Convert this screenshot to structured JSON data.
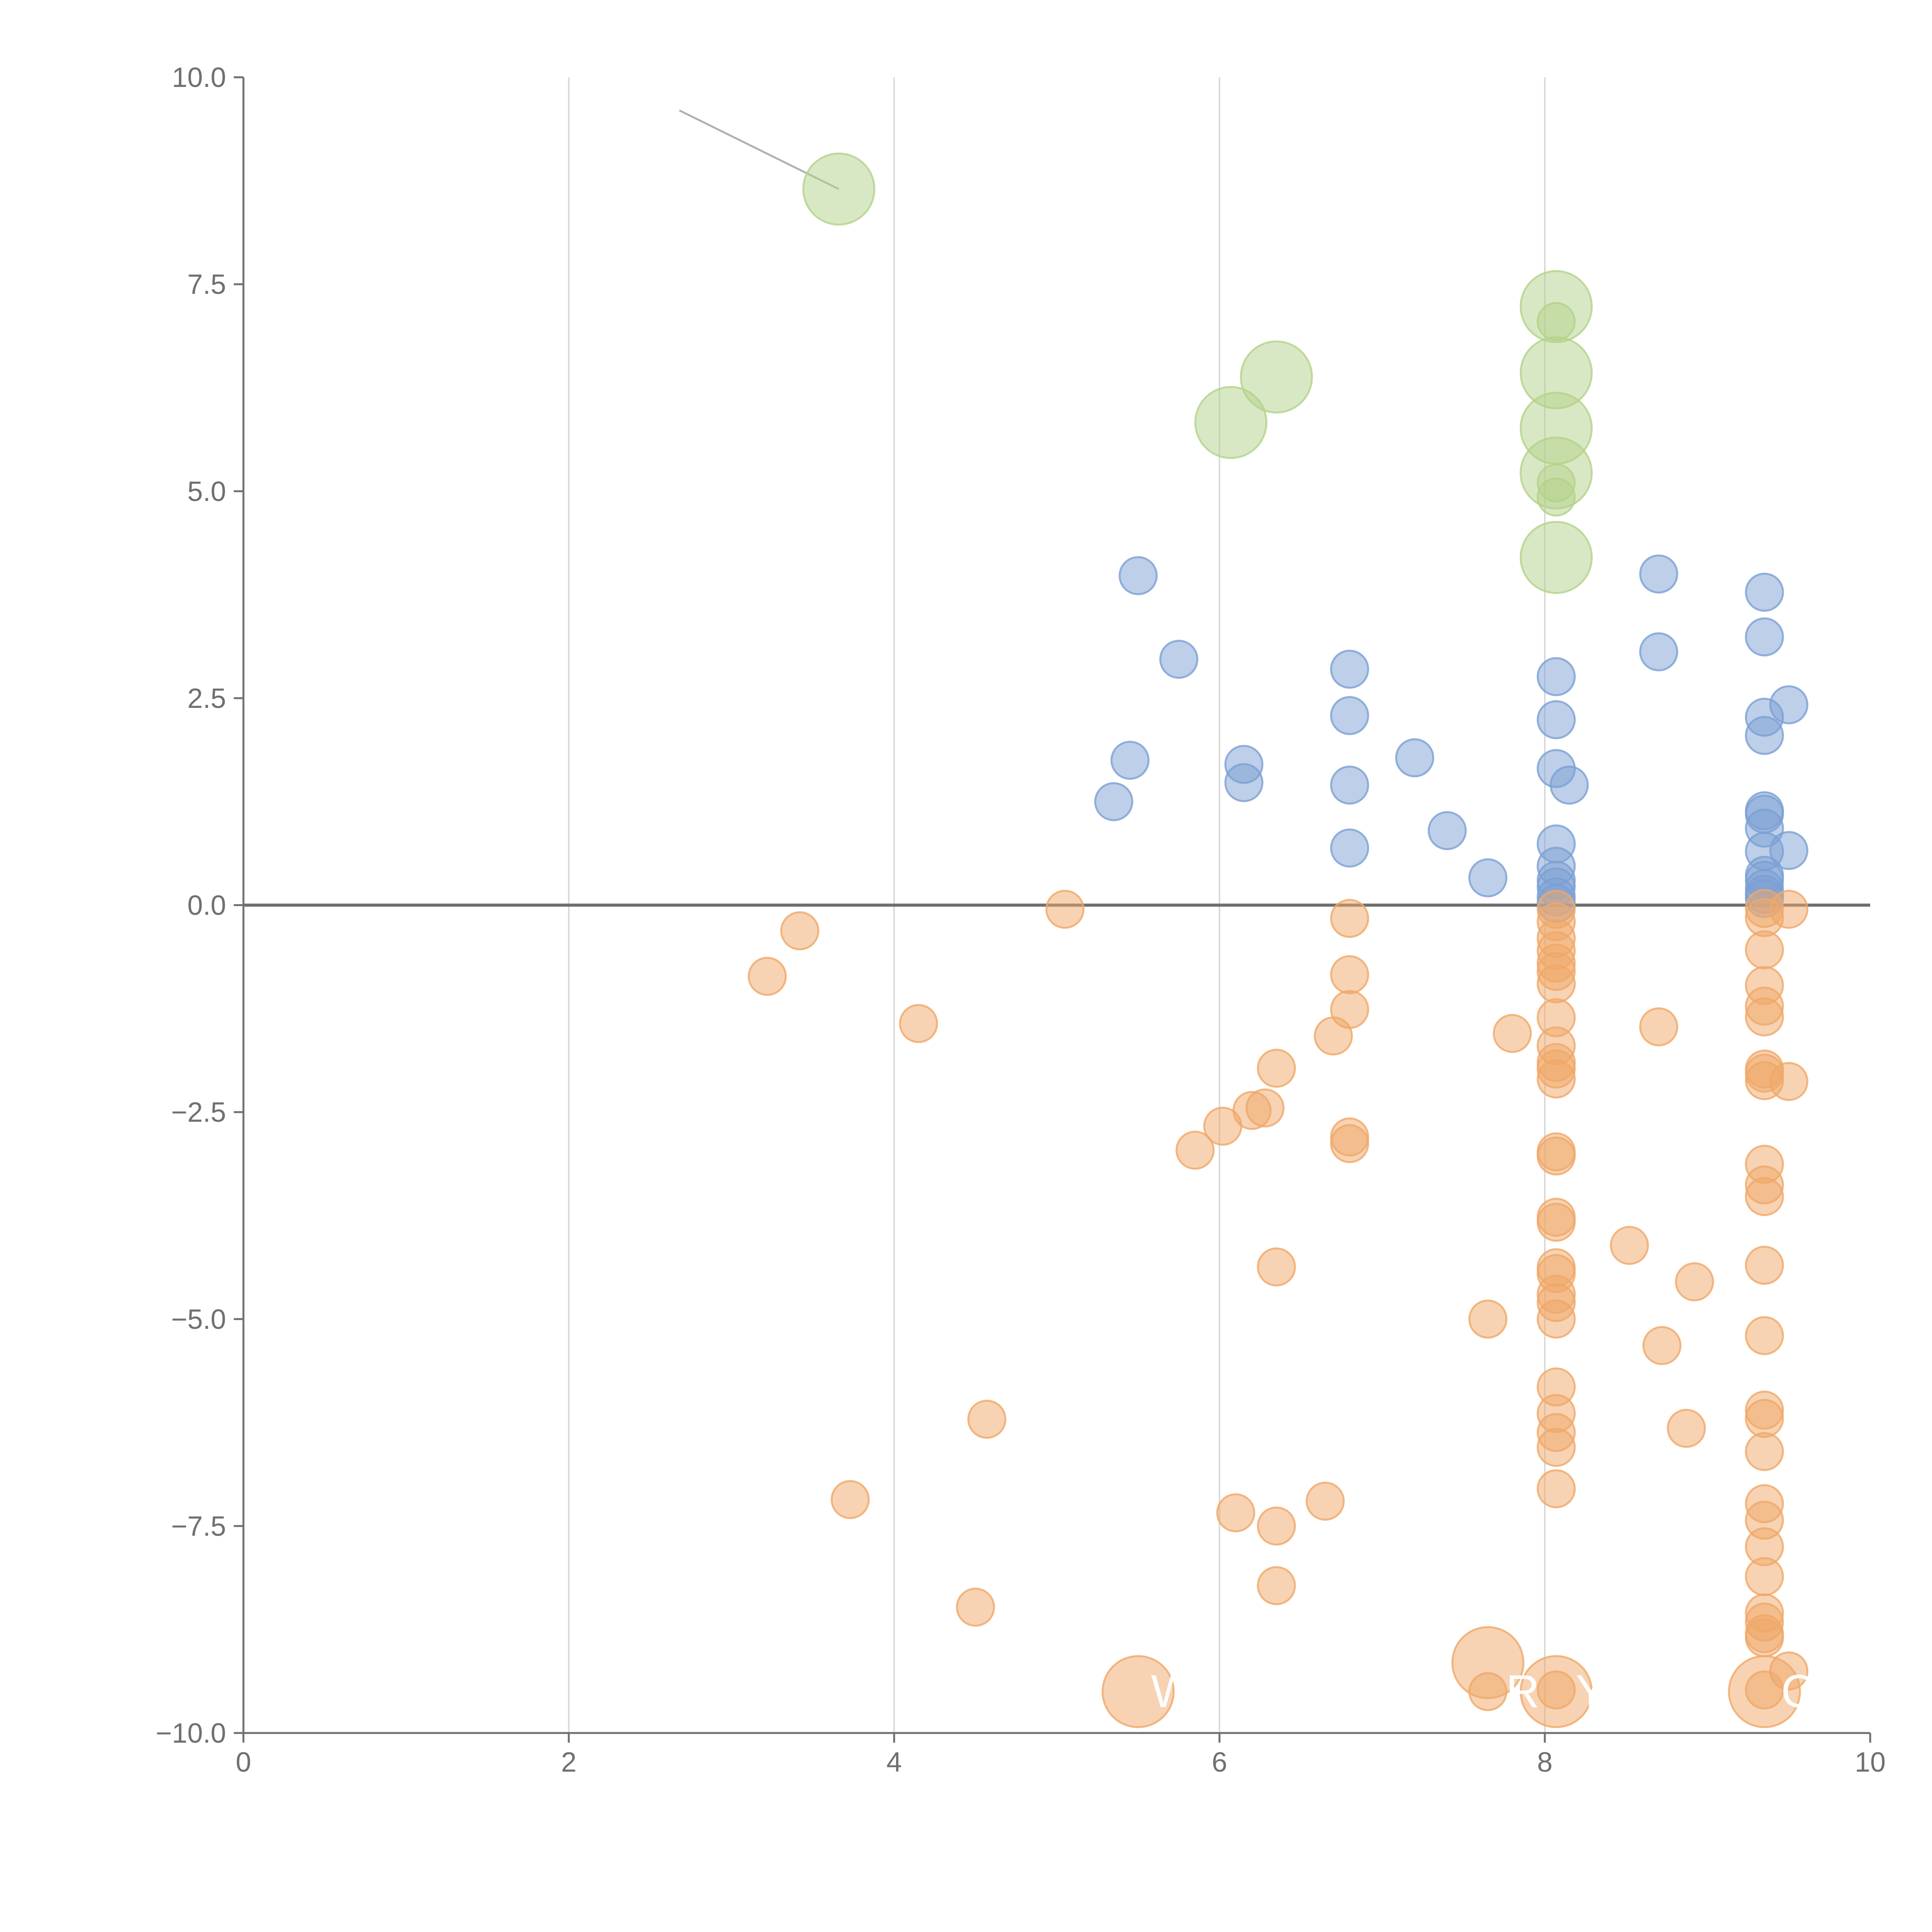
{
  "chart_data": {
    "type": "scatter",
    "title": "",
    "xlabel": "",
    "ylabel": "",
    "xlim": [
      0,
      10
    ],
    "ylim": [
      -10,
      10
    ],
    "x_ticks": [
      0,
      2,
      4,
      6,
      8,
      10
    ],
    "x_tick_labels": [
      "0",
      "2",
      "4",
      "6",
      "8",
      "10"
    ],
    "y_ticks": [
      10,
      7.5,
      5,
      2.5,
      0,
      -2.5,
      -5,
      -7.5,
      -10
    ],
    "y_tick_labels": [
      "10.0",
      "7.5",
      "5.0",
      "2.5",
      "0.0",
      "−2.5",
      "−5.0",
      "−7.5",
      "−10.0"
    ],
    "x_grid_at": [
      2,
      4,
      6,
      8
    ],
    "zero_line": 0,
    "colors": {
      "positive": "#7b9fd3",
      "negative": "#f0a868",
      "highlight": "#b4d28a",
      "axis": "#707070",
      "grid": "#d9d9d9",
      "zero_line": "#6e6e6e",
      "leader": "#b0b0b0"
    },
    "series": [
      {
        "name": "positive",
        "marker_size": "small",
        "points": [
          [
            5.5,
            3.98
          ],
          [
            5.75,
            2.97
          ],
          [
            5.45,
            1.75
          ],
          [
            5.35,
            1.25
          ],
          [
            6.15,
            1.7
          ],
          [
            6.15,
            1.48
          ],
          [
            6.8,
            2.85
          ],
          [
            6.8,
            2.29
          ],
          [
            6.8,
            1.45
          ],
          [
            6.8,
            0.69
          ],
          [
            7.2,
            1.78
          ],
          [
            7.4,
            0.9
          ],
          [
            7.65,
            0.33
          ],
          [
            8.07,
            2.76
          ],
          [
            8.07,
            2.24
          ],
          [
            8.07,
            1.65
          ],
          [
            8.15,
            1.45
          ],
          [
            8.07,
            0.74
          ],
          [
            8.07,
            0.47
          ],
          [
            8.07,
            0.3
          ],
          [
            8.07,
            0.22
          ],
          [
            8.07,
            0.1
          ],
          [
            8.07,
            0.02
          ],
          [
            8.7,
            4.0
          ],
          [
            8.7,
            3.06
          ],
          [
            9.35,
            3.78
          ],
          [
            9.35,
            3.24
          ],
          [
            9.5,
            2.42
          ],
          [
            9.35,
            2.27
          ],
          [
            9.35,
            2.05
          ],
          [
            9.35,
            1.14
          ],
          [
            9.35,
            1.1
          ],
          [
            9.35,
            0.93
          ],
          [
            9.35,
            0.65
          ],
          [
            9.5,
            0.66
          ],
          [
            9.35,
            0.36
          ],
          [
            9.35,
            0.3
          ],
          [
            9.35,
            0.2
          ],
          [
            9.35,
            0.13
          ],
          [
            9.35,
            0.08
          ]
        ]
      },
      {
        "name": "negative",
        "marker_size": "small",
        "points": [
          [
            3.42,
            -0.31
          ],
          [
            3.22,
            -0.86
          ],
          [
            4.15,
            -1.43
          ],
          [
            4.57,
            -6.21
          ],
          [
            3.73,
            -7.18
          ],
          [
            4.5,
            -8.48
          ],
          [
            5.05,
            -0.05
          ],
          [
            5.85,
            -2.96
          ],
          [
            6.02,
            -2.67
          ],
          [
            6.2,
            -2.48
          ],
          [
            6.28,
            -2.45
          ],
          [
            6.35,
            -1.97
          ],
          [
            6.35,
            -4.37
          ],
          [
            6.1,
            -7.34
          ],
          [
            6.35,
            -7.5
          ],
          [
            6.35,
            -8.22
          ],
          [
            6.65,
            -7.2
          ],
          [
            6.7,
            -1.58
          ],
          [
            6.8,
            -0.16
          ],
          [
            6.8,
            -0.84
          ],
          [
            6.8,
            -1.26
          ],
          [
            6.8,
            -2.8
          ],
          [
            6.8,
            -2.88
          ],
          [
            7.65,
            -5.0
          ],
          [
            7.8,
            -1.55
          ],
          [
            8.07,
            -0.05
          ],
          [
            8.07,
            -0.2
          ],
          [
            8.07,
            -0.4
          ],
          [
            8.07,
            -0.55
          ],
          [
            8.07,
            -0.7
          ],
          [
            8.07,
            -0.8
          ],
          [
            8.07,
            -0.95
          ],
          [
            8.07,
            -1.36
          ],
          [
            8.07,
            -1.7
          ],
          [
            8.07,
            -1.9
          ],
          [
            8.07,
            -1.98
          ],
          [
            8.07,
            -2.1
          ],
          [
            8.07,
            -2.98
          ],
          [
            8.07,
            -3.03
          ],
          [
            8.07,
            -3.77
          ],
          [
            8.07,
            -3.83
          ],
          [
            8.07,
            -4.38
          ],
          [
            8.07,
            -4.45
          ],
          [
            8.07,
            -4.7
          ],
          [
            8.07,
            -4.8
          ],
          [
            8.07,
            -5.0
          ],
          [
            8.07,
            -5.82
          ],
          [
            8.07,
            -6.14
          ],
          [
            8.07,
            -6.37
          ],
          [
            8.07,
            -6.55
          ],
          [
            8.07,
            -7.05
          ],
          [
            8.07,
            -9.48
          ],
          [
            8.52,
            -4.11
          ],
          [
            8.7,
            -1.47
          ],
          [
            8.72,
            -5.32
          ],
          [
            8.87,
            -6.32
          ],
          [
            8.92,
            -4.55
          ],
          [
            9.35,
            -0.04
          ],
          [
            9.35,
            -0.15
          ],
          [
            9.35,
            -0.54
          ],
          [
            9.35,
            -0.97
          ],
          [
            9.35,
            -1.22
          ],
          [
            9.35,
            -1.35
          ],
          [
            9.35,
            -1.98
          ],
          [
            9.35,
            -2.03
          ],
          [
            9.35,
            -2.12
          ],
          [
            9.5,
            -0.05
          ],
          [
            9.5,
            -2.13
          ],
          [
            9.35,
            -3.13
          ],
          [
            9.35,
            -3.38
          ],
          [
            9.35,
            -3.52
          ],
          [
            9.35,
            -4.35
          ],
          [
            9.35,
            -5.2
          ],
          [
            9.35,
            -6.1
          ],
          [
            9.35,
            -6.2
          ],
          [
            9.35,
            -6.6
          ],
          [
            9.35,
            -7.23
          ],
          [
            9.35,
            -7.43
          ],
          [
            9.35,
            -7.75
          ],
          [
            9.35,
            -8.11
          ],
          [
            9.35,
            -8.55
          ],
          [
            9.35,
            -8.66
          ],
          [
            9.35,
            -8.8
          ],
          [
            9.35,
            -8.85
          ],
          [
            9.35,
            -9.48
          ],
          [
            9.5,
            -9.25
          ],
          [
            7.65,
            -9.5
          ]
        ]
      },
      {
        "name": "negative-large",
        "marker_size": "large",
        "points": [
          [
            5.5,
            -9.5
          ],
          [
            7.65,
            -9.15
          ],
          [
            8.07,
            -9.5
          ],
          [
            9.35,
            -9.5
          ]
        ]
      },
      {
        "name": "highlight-large",
        "marker_size": "large",
        "points": [
          [
            3.66,
            8.65
          ],
          [
            6.35,
            6.38
          ],
          [
            6.07,
            5.83
          ],
          [
            8.07,
            7.23
          ],
          [
            8.07,
            6.43
          ],
          [
            8.07,
            5.76
          ],
          [
            8.07,
            5.22
          ],
          [
            8.07,
            4.2
          ]
        ]
      },
      {
        "name": "highlight-small",
        "marker_size": "small",
        "points": [
          [
            8.07,
            7.05
          ],
          [
            8.07,
            5.1
          ],
          [
            8.07,
            4.93
          ]
        ]
      }
    ],
    "annotations": [
      {
        "text": "W",
        "x": 5.5,
        "y": -9.5
      },
      {
        "text": "R",
        "x": 7.65,
        "y": -9.5
      },
      {
        "text": "Y",
        "x": 8.07,
        "y": -9.5
      },
      {
        "text": "O",
        "x": 9.35,
        "y": -9.5
      }
    ],
    "leader_line": {
      "from": [
        2.68,
        9.6
      ],
      "to": [
        3.66,
        8.65
      ]
    }
  }
}
